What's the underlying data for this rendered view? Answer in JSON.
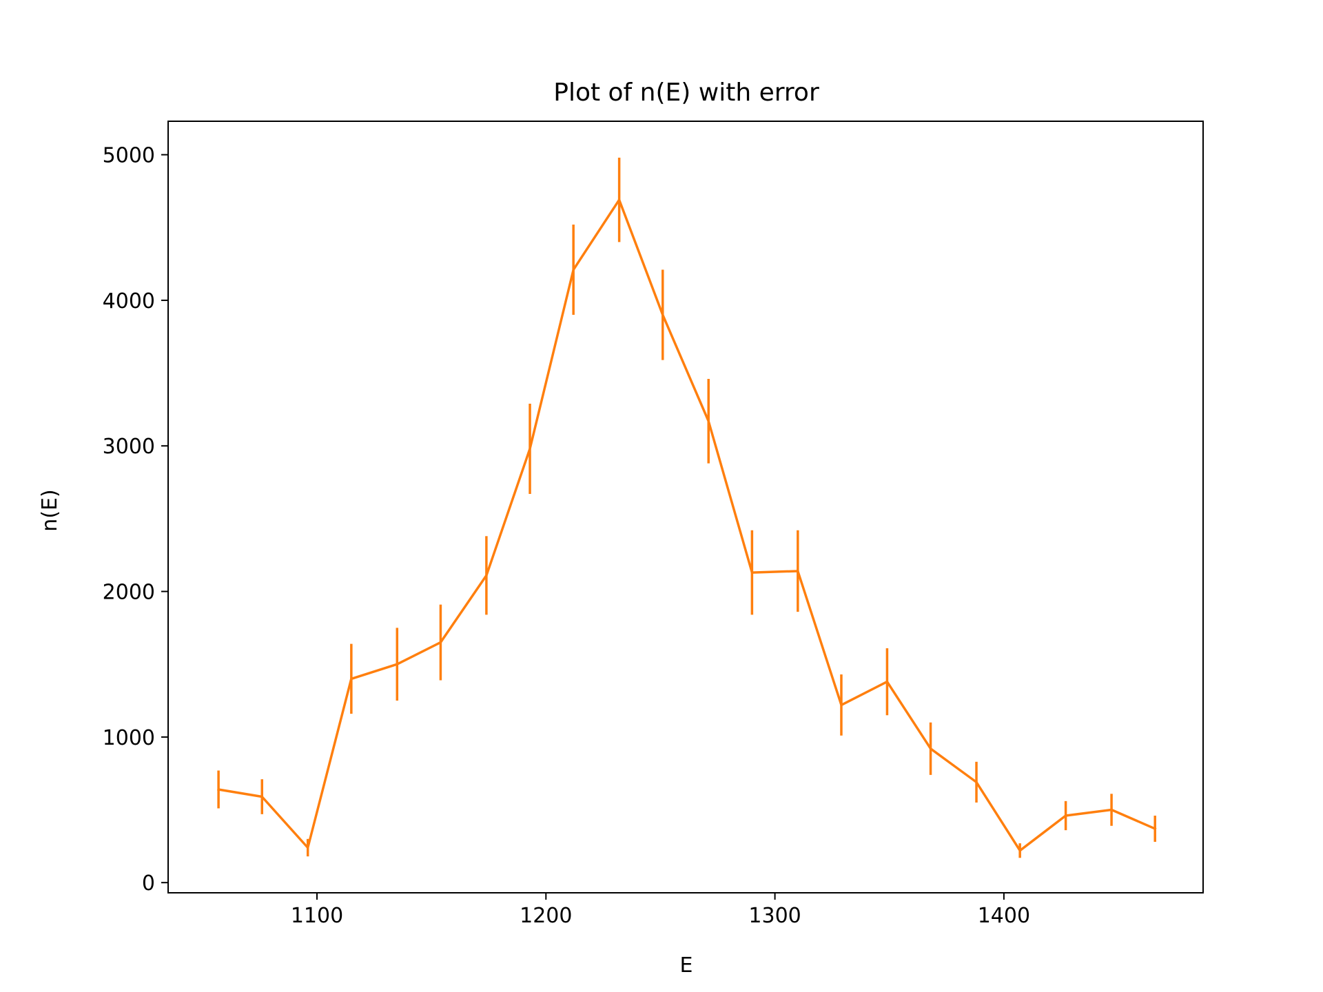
{
  "colors": {
    "series": "#ff7f0e",
    "axis": "#000000",
    "background": "#ffffff"
  },
  "chart_data": {
    "type": "line",
    "title": "Plot of n(E) with error",
    "xlabel": "E",
    "ylabel": "n(E)",
    "xlim": [
      1035,
      1487
    ],
    "ylim": [
      -70,
      5230
    ],
    "xticks": [
      1100,
      1200,
      1300,
      1400
    ],
    "yticks": [
      0,
      1000,
      2000,
      3000,
      4000,
      5000
    ],
    "grid": false,
    "legend": "none",
    "error_bars": true,
    "series": [
      {
        "x": [
          1057,
          1076,
          1096,
          1115,
          1135,
          1154,
          1174,
          1193,
          1212,
          1232,
          1251,
          1271,
          1290,
          1310,
          1329,
          1349,
          1368,
          1388,
          1407,
          1427,
          1447,
          1466
        ],
        "values": [
          640,
          590,
          240,
          1400,
          1500,
          1650,
          2110,
          2980,
          4210,
          4690,
          3900,
          3170,
          2130,
          2140,
          1220,
          1380,
          920,
          690,
          220,
          460,
          500,
          370
        ],
        "errors": [
          130,
          120,
          60,
          240,
          250,
          260,
          270,
          310,
          310,
          290,
          310,
          290,
          290,
          280,
          210,
          230,
          180,
          140,
          50,
          100,
          110,
          90
        ]
      }
    ]
  }
}
